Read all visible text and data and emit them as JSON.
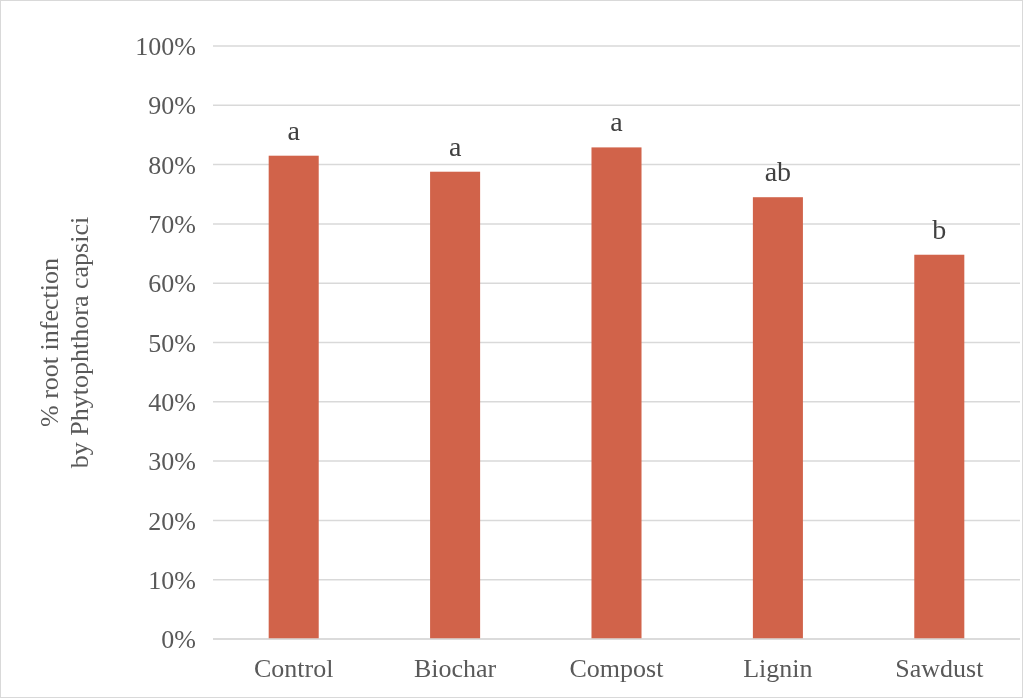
{
  "chart_data": {
    "type": "bar",
    "ylabel": "% root infection by Phytophthora capsici",
    "categories": [
      "Control",
      "Biochar",
      "Compost",
      "Lignin",
      "Sawdust"
    ],
    "values": [
      81.5,
      78.8,
      82.9,
      74.5,
      64.8
    ],
    "color": "#d1634a",
    "ylim": [
      0,
      100
    ],
    "yticks": [
      {
        "value": 0,
        "label": "0%"
      },
      {
        "value": 10,
        "label": "10%"
      },
      {
        "value": 20,
        "label": "20%"
      },
      {
        "value": 30,
        "label": "30%"
      },
      {
        "value": 40,
        "label": "40%"
      },
      {
        "value": 50,
        "label": "50%"
      },
      {
        "value": 60,
        "label": "60%"
      },
      {
        "value": 70,
        "label": "70%"
      },
      {
        "value": 80,
        "label": "80%"
      },
      {
        "value": 90,
        "label": "90%"
      },
      {
        "value": 100,
        "label": "100%"
      }
    ],
    "grid": "y",
    "annotations": [
      {
        "text": "a",
        "x": "Control",
        "y": 81.5
      },
      {
        "text": "a",
        "x": "Biochar",
        "y": 78.8
      },
      {
        "text": "a",
        "x": "Compost",
        "y": 82.9
      },
      {
        "text": "ab",
        "x": "Lignin",
        "y": 74.5
      },
      {
        "text": "b",
        "x": "Sawdust",
        "y": 64.8
      }
    ]
  }
}
